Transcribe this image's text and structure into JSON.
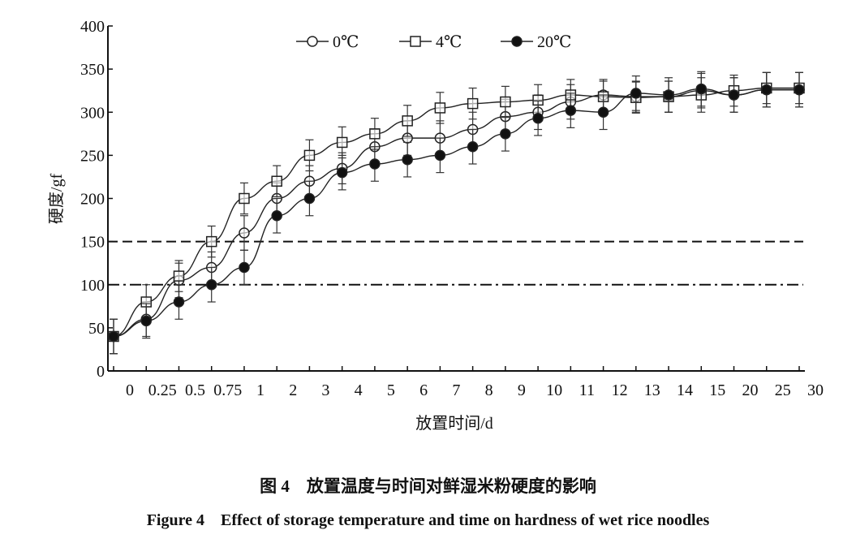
{
  "chart_data": {
    "type": "line",
    "xlabel": "放置时间/d",
    "ylabel": "硬度/gf",
    "categories": [
      "0",
      "0.25",
      "0.5",
      "0.75",
      "1",
      "2",
      "3",
      "4",
      "5",
      "6",
      "7",
      "8",
      "9",
      "10",
      "11",
      "12",
      "13",
      "14",
      "15",
      "20",
      "25",
      "30"
    ],
    "ylim": [
      0,
      400
    ],
    "yticks": [
      0,
      50,
      100,
      150,
      200,
      250,
      300,
      350,
      400
    ],
    "grid": false,
    "legend_position": "top-center",
    "reference_lines": [
      {
        "y": 150,
        "style": "dashed"
      },
      {
        "y": 100,
        "style": "dash-dot"
      }
    ],
    "series": [
      {
        "name": "0℃",
        "marker": "open-circle",
        "values": [
          40,
          60,
          105,
          120,
          160,
          200,
          220,
          235,
          260,
          270,
          270,
          280,
          295,
          300,
          312,
          320,
          318,
          318,
          325,
          320,
          326,
          326
        ],
        "error": [
          20,
          20,
          20,
          18,
          20,
          18,
          18,
          18,
          20,
          20,
          20,
          20,
          20,
          20,
          20,
          18,
          18,
          18,
          20,
          20,
          20,
          20
        ]
      },
      {
        "name": "4℃",
        "marker": "open-square",
        "values": [
          40,
          80,
          110,
          150,
          200,
          220,
          250,
          265,
          275,
          290,
          305,
          310,
          312,
          314,
          320,
          318,
          317,
          318,
          320,
          325,
          328,
          328
        ],
        "error": [
          20,
          20,
          18,
          18,
          18,
          18,
          18,
          18,
          18,
          18,
          18,
          18,
          18,
          18,
          18,
          18,
          18,
          18,
          20,
          18,
          18,
          18
        ]
      },
      {
        "name": "20℃",
        "marker": "filled-circle",
        "values": [
          40,
          58,
          80,
          100,
          120,
          180,
          200,
          230,
          240,
          245,
          250,
          260,
          275,
          293,
          302,
          300,
          322,
          320,
          327,
          320,
          326,
          326
        ],
        "error": [
          20,
          20,
          20,
          20,
          20,
          20,
          20,
          20,
          20,
          20,
          20,
          20,
          20,
          20,
          20,
          20,
          20,
          20,
          20,
          20,
          20,
          20
        ]
      }
    ]
  },
  "caption": {
    "cn": "图 4　放置温度与时间对鲜湿米粉硬度的影响",
    "en": "Figure 4　Effect of storage temperature and time on hardness of wet rice noodles"
  }
}
